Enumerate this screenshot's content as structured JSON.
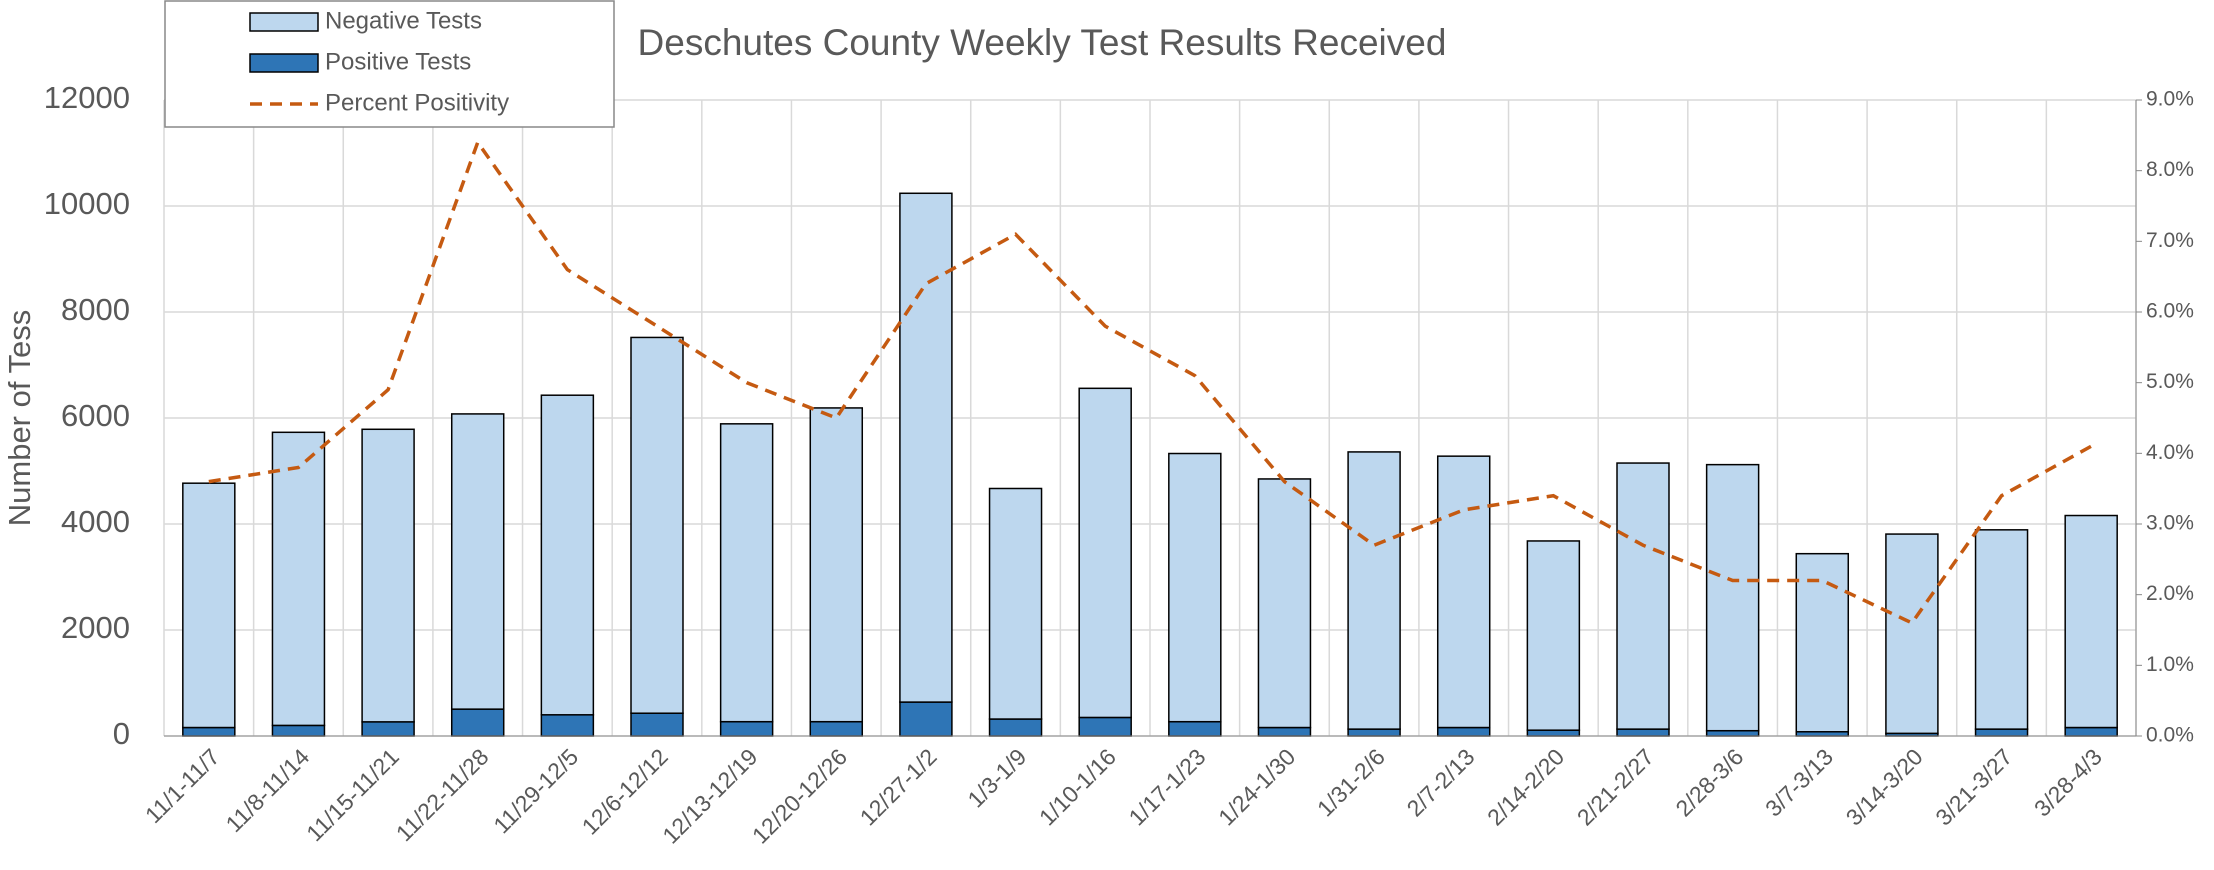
{
  "chart_data": {
    "type": "bar",
    "title": "Deschutes County Weekly Test Results Received",
    "y_label": "Number of Tess",
    "categories": [
      "11/1-11/7",
      "11/8-11/14",
      "11/15-11/21",
      "11/22-11/28",
      "11/29-12/5",
      "12/6-12/12",
      "12/13-12/19",
      "12/20-12/26",
      "12/27-1/2",
      "1/3-1/9",
      "1/10-1/16",
      "1/17-1/23",
      "1/24-1/30",
      "1/31-2/6",
      "2/7-2/13",
      "2/14-2/20",
      "2/21-2/27",
      "2/28-3/6",
      "3/7-3/13",
      "3/14-3/20",
      "3/21-3/27",
      "3/28-4/3"
    ],
    "series": [
      {
        "name": "Negative Tests",
        "color": "#bdd7ee",
        "stacked": true,
        "values": [
          4610,
          5530,
          5520,
          5570,
          6030,
          7090,
          5620,
          5920,
          9600,
          4350,
          6210,
          5060,
          4690,
          5230,
          5120,
          3570,
          5020,
          5020,
          3360,
          3760,
          3760,
          4000
        ]
      },
      {
        "name": "Positive Tests",
        "color": "#2e75b6",
        "stacked": true,
        "values": [
          160,
          200,
          267,
          507,
          400,
          430,
          270,
          270,
          640,
          320,
          350,
          270,
          160,
          130,
          160,
          110,
          130,
          100,
          80,
          50,
          130,
          160
        ]
      },
      {
        "name": "Percent Positivity",
        "color": "#c55a11",
        "type": "line",
        "axis": "y2",
        "dashed": true,
        "values": [
          3.6,
          3.8,
          4.9,
          8.4,
          6.6,
          5.8,
          5.0,
          4.5,
          6.4,
          7.1,
          5.8,
          5.1,
          3.6,
          2.7,
          3.2,
          3.4,
          2.7,
          2.2,
          2.2,
          1.6,
          3.4,
          4.1
        ]
      }
    ],
    "ylim": [
      0,
      12000
    ],
    "yticks": [
      0,
      2000,
      4000,
      6000,
      8000,
      10000,
      12000
    ],
    "y2lim": [
      0,
      9
    ],
    "y2ticks": [
      {
        "value": 0,
        "label": "0.0%"
      },
      {
        "value": 1,
        "label": "1.0%"
      },
      {
        "value": 2,
        "label": "2.0%"
      },
      {
        "value": 3,
        "label": "3.0%"
      },
      {
        "value": 4,
        "label": "4.0%"
      },
      {
        "value": 5,
        "label": "5.0%"
      },
      {
        "value": 6,
        "label": "6.0%"
      },
      {
        "value": 7,
        "label": "7.0%"
      },
      {
        "value": 8,
        "label": "8.0%"
      },
      {
        "value": 9,
        "label": "9.0%"
      }
    ],
    "grid": true,
    "legend": "top-left"
  }
}
